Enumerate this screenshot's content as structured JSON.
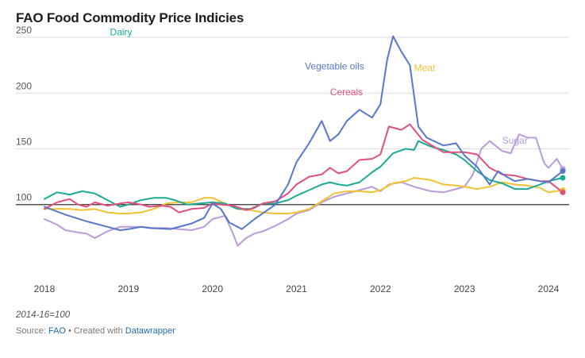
{
  "header": {
    "title": "FAO Food Commodity Price Indicies"
  },
  "footer": {
    "note": "2014-16=100",
    "source_prefix": "Source: ",
    "source_name": "FAO",
    "created_with": " • Created with ",
    "tool_name": "Datawrapper"
  },
  "chart_data": {
    "type": "line",
    "title": "FAO Food Commodity Price Indicies",
    "xlabel": "",
    "ylabel": "",
    "xlim": [
      2018.0,
      2024.17
    ],
    "ylim": [
      40,
      255
    ],
    "y_ticks": [
      100,
      150,
      200,
      250
    ],
    "x_ticks": [
      2018,
      2019,
      2020,
      2021,
      2022,
      2023,
      2024
    ],
    "x_tick_labels": [
      "2018",
      "2019",
      "2020",
      "2021",
      "2022",
      "2023",
      "2024"
    ],
    "y_tick_labels": [
      "100",
      "150",
      "200",
      "250"
    ],
    "reference_line": 100,
    "grid": true,
    "legend": "inline labels",
    "series": [
      {
        "name": "Vegetable oils",
        "color": "#5577cc",
        "label_at": [
          2021.1,
          224
        ],
        "points": [
          [
            2018.0,
            98
          ],
          [
            2018.25,
            91
          ],
          [
            2018.5,
            85
          ],
          [
            2018.75,
            80
          ],
          [
            2018.9,
            77
          ],
          [
            2019.0,
            78
          ],
          [
            2019.15,
            80
          ],
          [
            2019.25,
            79
          ],
          [
            2019.5,
            78
          ],
          [
            2019.75,
            83
          ],
          [
            2019.9,
            88
          ],
          [
            2020.0,
            101
          ],
          [
            2020.1,
            96
          ],
          [
            2020.2,
            84
          ],
          [
            2020.35,
            78
          ],
          [
            2020.5,
            87
          ],
          [
            2020.75,
            100
          ],
          [
            2020.9,
            118
          ],
          [
            2021.0,
            138
          ],
          [
            2021.15,
            155
          ],
          [
            2021.3,
            175
          ],
          [
            2021.4,
            157
          ],
          [
            2021.5,
            163
          ],
          [
            2021.6,
            175
          ],
          [
            2021.75,
            185
          ],
          [
            2021.9,
            178
          ],
          [
            2022.0,
            190
          ],
          [
            2022.08,
            230
          ],
          [
            2022.15,
            251
          ],
          [
            2022.25,
            237
          ],
          [
            2022.35,
            225
          ],
          [
            2022.45,
            170
          ],
          [
            2022.55,
            160
          ],
          [
            2022.75,
            153
          ],
          [
            2022.9,
            155
          ],
          [
            2023.0,
            144
          ],
          [
            2023.15,
            134
          ],
          [
            2023.3,
            118
          ],
          [
            2023.4,
            130
          ],
          [
            2023.5,
            125
          ],
          [
            2023.6,
            121
          ],
          [
            2023.75,
            123
          ],
          [
            2023.9,
            121
          ],
          [
            2024.0,
            120
          ],
          [
            2024.17,
            130
          ]
        ]
      },
      {
        "name": "Cereals",
        "color": "#e34f7d",
        "label_at": [
          2021.4,
          201
        ],
        "points": [
          [
            2018.0,
            96
          ],
          [
            2018.15,
            102
          ],
          [
            2018.3,
            105
          ],
          [
            2018.4,
            100
          ],
          [
            2018.5,
            98
          ],
          [
            2018.6,
            102
          ],
          [
            2018.75,
            99
          ],
          [
            2018.9,
            101
          ],
          [
            2019.0,
            102
          ],
          [
            2019.15,
            100
          ],
          [
            2019.25,
            98
          ],
          [
            2019.4,
            99
          ],
          [
            2019.5,
            98
          ],
          [
            2019.6,
            93
          ],
          [
            2019.75,
            96
          ],
          [
            2019.9,
            97
          ],
          [
            2020.0,
            101
          ],
          [
            2020.1,
            100
          ],
          [
            2020.25,
            99
          ],
          [
            2020.4,
            95
          ],
          [
            2020.5,
            97
          ],
          [
            2020.6,
            101
          ],
          [
            2020.75,
            103
          ],
          [
            2020.9,
            110
          ],
          [
            2021.0,
            118
          ],
          [
            2021.15,
            125
          ],
          [
            2021.3,
            127
          ],
          [
            2021.4,
            133
          ],
          [
            2021.5,
            128
          ],
          [
            2021.6,
            130
          ],
          [
            2021.75,
            140
          ],
          [
            2021.9,
            141
          ],
          [
            2022.0,
            145
          ],
          [
            2022.1,
            170
          ],
          [
            2022.25,
            167
          ],
          [
            2022.35,
            172
          ],
          [
            2022.5,
            158
          ],
          [
            2022.75,
            147
          ],
          [
            2022.9,
            147
          ],
          [
            2023.0,
            147
          ],
          [
            2023.15,
            145
          ],
          [
            2023.3,
            133
          ],
          [
            2023.45,
            127
          ],
          [
            2023.6,
            126
          ],
          [
            2023.75,
            123
          ],
          [
            2023.9,
            121
          ],
          [
            2024.0,
            121
          ],
          [
            2024.17,
            111
          ]
        ]
      },
      {
        "name": "Dairy",
        "color": "#1aab94",
        "label_at": [
          2018.78,
          254.5
        ],
        "points": [
          [
            2018.0,
            105
          ],
          [
            2018.15,
            111
          ],
          [
            2018.3,
            109
          ],
          [
            2018.45,
            112
          ],
          [
            2018.6,
            110
          ],
          [
            2018.75,
            104
          ],
          [
            2018.9,
            98
          ],
          [
            2019.0,
            100
          ],
          [
            2019.15,
            104
          ],
          [
            2019.3,
            106
          ],
          [
            2019.45,
            106
          ],
          [
            2019.55,
            104
          ],
          [
            2019.7,
            100
          ],
          [
            2019.85,
            101
          ],
          [
            2020.0,
            102
          ],
          [
            2020.15,
            101
          ],
          [
            2020.3,
            96
          ],
          [
            2020.45,
            96
          ],
          [
            2020.6,
            101
          ],
          [
            2020.75,
            101
          ],
          [
            2020.9,
            104
          ],
          [
            2021.0,
            108
          ],
          [
            2021.15,
            113
          ],
          [
            2021.3,
            118
          ],
          [
            2021.4,
            120
          ],
          [
            2021.5,
            118
          ],
          [
            2021.6,
            117
          ],
          [
            2021.75,
            120
          ],
          [
            2021.9,
            129
          ],
          [
            2022.0,
            134
          ],
          [
            2022.15,
            146
          ],
          [
            2022.3,
            150
          ],
          [
            2022.4,
            149
          ],
          [
            2022.45,
            157
          ],
          [
            2022.6,
            152
          ],
          [
            2022.75,
            149
          ],
          [
            2022.9,
            145
          ],
          [
            2023.0,
            140
          ],
          [
            2023.15,
            130
          ],
          [
            2023.3,
            122
          ],
          [
            2023.45,
            119
          ],
          [
            2023.6,
            114
          ],
          [
            2023.75,
            114
          ],
          [
            2023.9,
            118
          ],
          [
            2024.0,
            121
          ],
          [
            2024.17,
            124
          ]
        ]
      },
      {
        "name": "Meat",
        "color": "#f1c232",
        "label_at": [
          2022.4,
          222.5
        ],
        "points": [
          [
            2018.0,
            96
          ],
          [
            2018.15,
            96
          ],
          [
            2018.3,
            96
          ],
          [
            2018.45,
            95
          ],
          [
            2018.6,
            96
          ],
          [
            2018.75,
            93
          ],
          [
            2018.9,
            92
          ],
          [
            2019.0,
            92
          ],
          [
            2019.15,
            93
          ],
          [
            2019.3,
            96
          ],
          [
            2019.45,
            101
          ],
          [
            2019.6,
            102
          ],
          [
            2019.75,
            102
          ],
          [
            2019.9,
            106
          ],
          [
            2020.0,
            106
          ],
          [
            2020.15,
            101
          ],
          [
            2020.3,
            96
          ],
          [
            2020.45,
            95
          ],
          [
            2020.6,
            93
          ],
          [
            2020.75,
            92
          ],
          [
            2020.9,
            92
          ],
          [
            2021.0,
            93
          ],
          [
            2021.15,
            96
          ],
          [
            2021.3,
            103
          ],
          [
            2021.45,
            110
          ],
          [
            2021.6,
            112
          ],
          [
            2021.75,
            112
          ],
          [
            2021.9,
            111
          ],
          [
            2022.0,
            113
          ],
          [
            2022.15,
            119
          ],
          [
            2022.3,
            121
          ],
          [
            2022.4,
            124
          ],
          [
            2022.5,
            123
          ],
          [
            2022.6,
            122
          ],
          [
            2022.75,
            118
          ],
          [
            2022.9,
            117
          ],
          [
            2023.0,
            116
          ],
          [
            2023.15,
            114
          ],
          [
            2023.3,
            116
          ],
          [
            2023.45,
            120
          ],
          [
            2023.6,
            118
          ],
          [
            2023.75,
            117
          ],
          [
            2023.9,
            115
          ],
          [
            2024.0,
            111
          ],
          [
            2024.17,
            113
          ]
        ]
      },
      {
        "name": "Sugar",
        "color": "#b99adb",
        "label_at": [
          2023.45,
          157.5
        ],
        "points": [
          [
            2018.0,
            87
          ],
          [
            2018.15,
            82
          ],
          [
            2018.25,
            77
          ],
          [
            2018.4,
            75
          ],
          [
            2018.5,
            74
          ],
          [
            2018.6,
            70
          ],
          [
            2018.75,
            76
          ],
          [
            2018.9,
            80
          ],
          [
            2019.0,
            80
          ],
          [
            2019.15,
            80
          ],
          [
            2019.3,
            79
          ],
          [
            2019.45,
            79
          ],
          [
            2019.6,
            78
          ],
          [
            2019.75,
            77
          ],
          [
            2019.9,
            80
          ],
          [
            2020.0,
            87
          ],
          [
            2020.15,
            90
          ],
          [
            2020.25,
            73
          ],
          [
            2020.3,
            63
          ],
          [
            2020.4,
            70
          ],
          [
            2020.5,
            74
          ],
          [
            2020.6,
            76
          ],
          [
            2020.75,
            81
          ],
          [
            2020.9,
            87
          ],
          [
            2021.0,
            92
          ],
          [
            2021.15,
            95
          ],
          [
            2021.3,
            102
          ],
          [
            2021.45,
            107
          ],
          [
            2021.6,
            110
          ],
          [
            2021.75,
            113
          ],
          [
            2021.9,
            116
          ],
          [
            2022.0,
            112
          ],
          [
            2022.1,
            118
          ],
          [
            2022.25,
            120
          ],
          [
            2022.4,
            116
          ],
          [
            2022.5,
            114
          ],
          [
            2022.6,
            112
          ],
          [
            2022.75,
            111
          ],
          [
            2022.9,
            114
          ],
          [
            2023.0,
            116
          ],
          [
            2023.1,
            127
          ],
          [
            2023.2,
            150
          ],
          [
            2023.3,
            157
          ],
          [
            2023.45,
            148
          ],
          [
            2023.55,
            146
          ],
          [
            2023.65,
            163
          ],
          [
            2023.75,
            160
          ],
          [
            2023.85,
            160
          ],
          [
            2023.95,
            137
          ],
          [
            2024.0,
            133
          ],
          [
            2024.1,
            141
          ],
          [
            2024.17,
            132
          ]
        ]
      }
    ]
  }
}
